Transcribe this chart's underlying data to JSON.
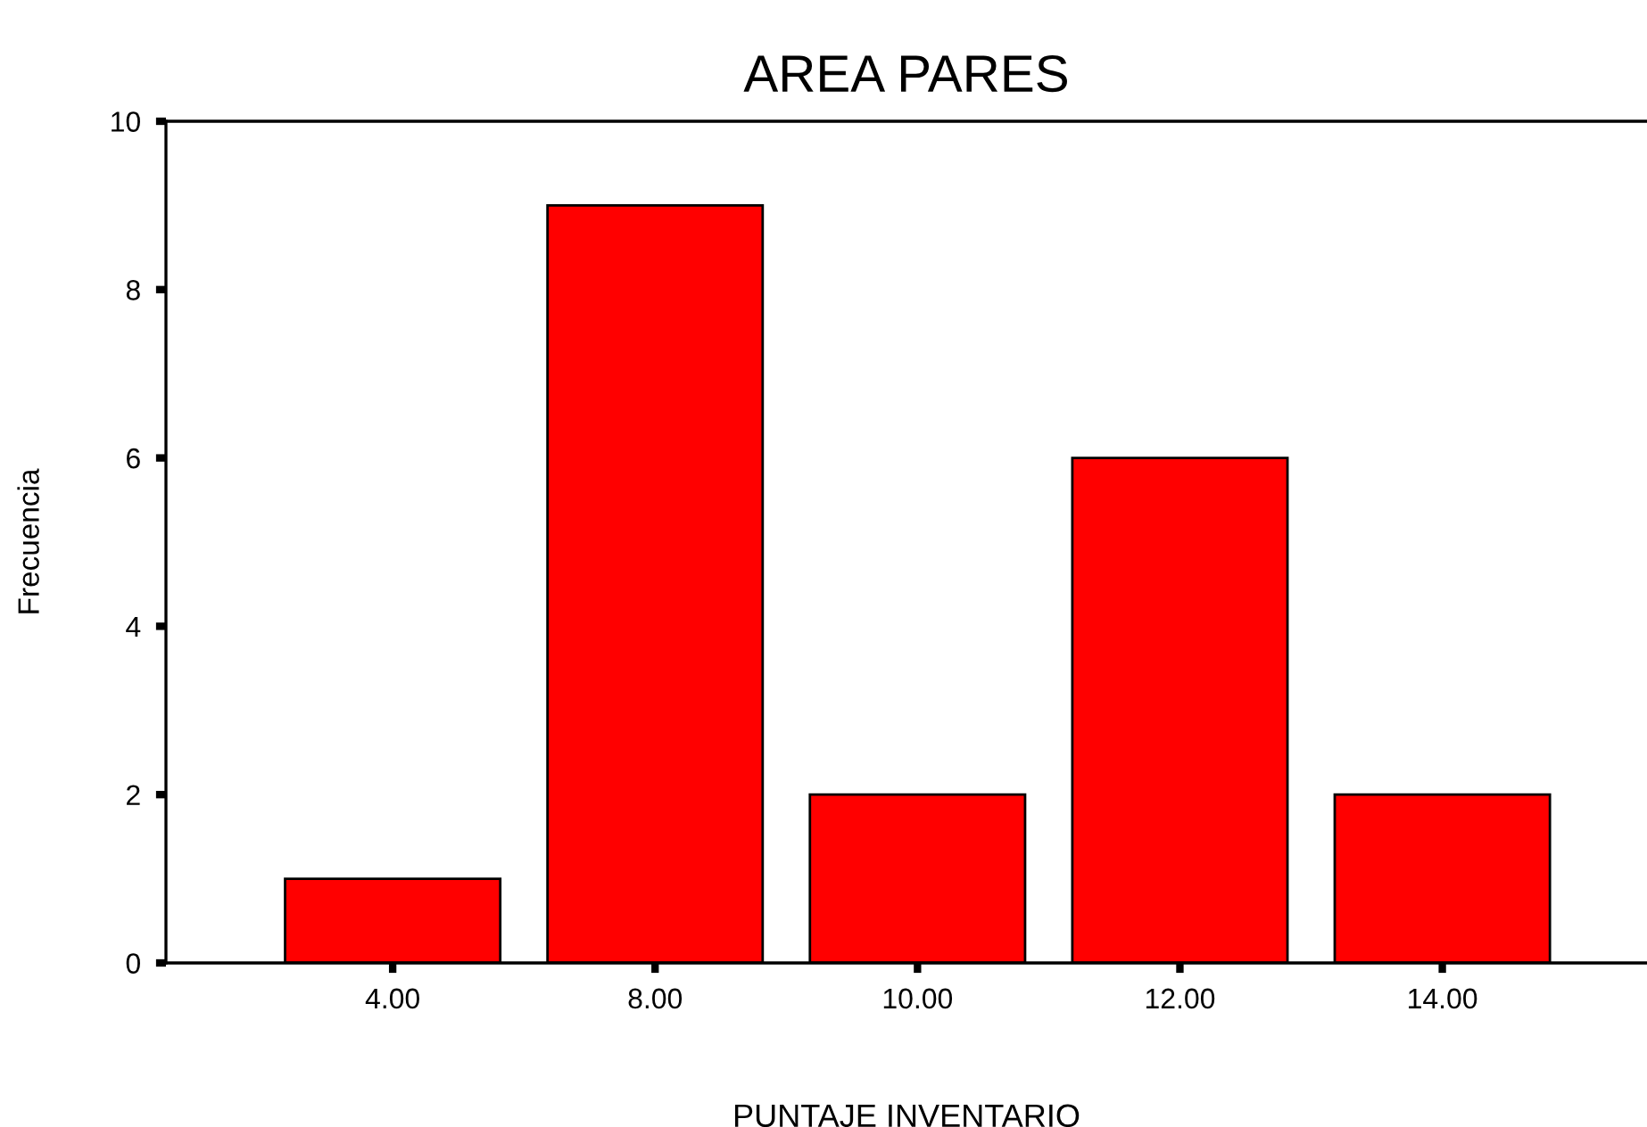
{
  "chart_data": {
    "type": "bar",
    "title": "AREA PARES",
    "xlabel": "PUNTAJE INVENTARIO",
    "ylabel": "Frecuencia",
    "categories": [
      "4.00",
      "8.00",
      "10.00",
      "12.00",
      "14.00"
    ],
    "values": [
      1,
      9,
      2,
      6,
      2
    ],
    "color": "#ff0000",
    "ylim": [
      0,
      10
    ],
    "yticks": [
      0,
      2,
      4,
      6,
      8,
      10
    ],
    "grid": false,
    "legend": false
  }
}
